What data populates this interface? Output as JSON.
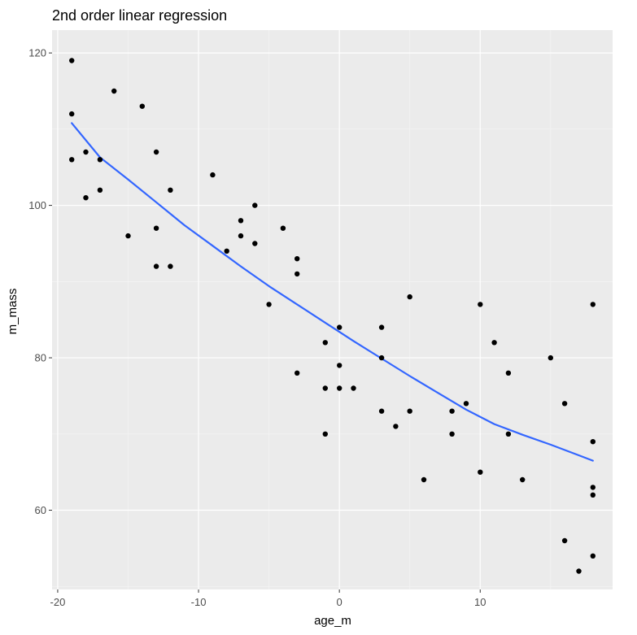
{
  "chart_data": {
    "type": "scatter",
    "title": "2nd order linear regression",
    "xlabel": "age_m",
    "ylabel": "m_mass",
    "xlim": [
      -20.4,
      19.4
    ],
    "ylim": [
      49.6,
      123
    ],
    "x_ticks": [
      -20,
      -10,
      0,
      10
    ],
    "y_ticks": [
      60,
      80,
      100,
      120
    ],
    "grid": true,
    "colors": {
      "panel": "#ebebeb",
      "grid_major": "#ffffff",
      "points": "#000000",
      "fit_line": "#3366ff",
      "tick_text": "#4d4d4d"
    },
    "points": [
      {
        "x": -19,
        "y": 119
      },
      {
        "x": -19,
        "y": 112
      },
      {
        "x": -19,
        "y": 106
      },
      {
        "x": -18,
        "y": 107
      },
      {
        "x": -18,
        "y": 101
      },
      {
        "x": -17,
        "y": 106
      },
      {
        "x": -17,
        "y": 102
      },
      {
        "x": -16,
        "y": 115
      },
      {
        "x": -15,
        "y": 96
      },
      {
        "x": -14,
        "y": 113
      },
      {
        "x": -13,
        "y": 107
      },
      {
        "x": -13,
        "y": 97
      },
      {
        "x": -13,
        "y": 92
      },
      {
        "x": -12,
        "y": 102
      },
      {
        "x": -12,
        "y": 92
      },
      {
        "x": -9,
        "y": 104
      },
      {
        "x": -8,
        "y": 94
      },
      {
        "x": -7,
        "y": 98
      },
      {
        "x": -7,
        "y": 96
      },
      {
        "x": -6,
        "y": 100
      },
      {
        "x": -6,
        "y": 95
      },
      {
        "x": -5,
        "y": 87
      },
      {
        "x": -4,
        "y": 97
      },
      {
        "x": -3,
        "y": 93
      },
      {
        "x": -3,
        "y": 91
      },
      {
        "x": -3,
        "y": 78
      },
      {
        "x": -1,
        "y": 82
      },
      {
        "x": -1,
        "y": 76
      },
      {
        "x": -1,
        "y": 70
      },
      {
        "x": 0,
        "y": 84
      },
      {
        "x": 0,
        "y": 79
      },
      {
        "x": 0,
        "y": 76
      },
      {
        "x": 1,
        "y": 76
      },
      {
        "x": 3,
        "y": 84
      },
      {
        "x": 3,
        "y": 80
      },
      {
        "x": 3,
        "y": 73
      },
      {
        "x": 4,
        "y": 71
      },
      {
        "x": 5,
        "y": 88
      },
      {
        "x": 5,
        "y": 73
      },
      {
        "x": 6,
        "y": 64
      },
      {
        "x": 8,
        "y": 73
      },
      {
        "x": 8,
        "y": 70
      },
      {
        "x": 9,
        "y": 74
      },
      {
        "x": 10,
        "y": 87
      },
      {
        "x": 10,
        "y": 65
      },
      {
        "x": 11,
        "y": 82
      },
      {
        "x": 12,
        "y": 78
      },
      {
        "x": 12,
        "y": 70
      },
      {
        "x": 13,
        "y": 64
      },
      {
        "x": 15,
        "y": 80
      },
      {
        "x": 16,
        "y": 74
      },
      {
        "x": 16,
        "y": 56
      },
      {
        "x": 17,
        "y": 52
      },
      {
        "x": 18,
        "y": 87
      },
      {
        "x": 18,
        "y": 69
      },
      {
        "x": 18,
        "y": 63
      },
      {
        "x": 18,
        "y": 62
      },
      {
        "x": 18,
        "y": 54
      }
    ],
    "fit_line": {
      "x": [
        -19,
        -17,
        -15,
        -13,
        -11,
        -9,
        -7,
        -5,
        -3,
        -1,
        0,
        1,
        3,
        5,
        7,
        9,
        11,
        13,
        15,
        17,
        18
      ],
      "y": [
        110.8,
        106.3,
        103.4,
        100.4,
        97.4,
        94.7,
        92.0,
        89.4,
        87.0,
        84.6,
        83.4,
        82.2,
        79.9,
        77.6,
        75.4,
        73.2,
        71.3,
        69.9,
        68.6,
        67.2,
        66.5
      ]
    }
  }
}
